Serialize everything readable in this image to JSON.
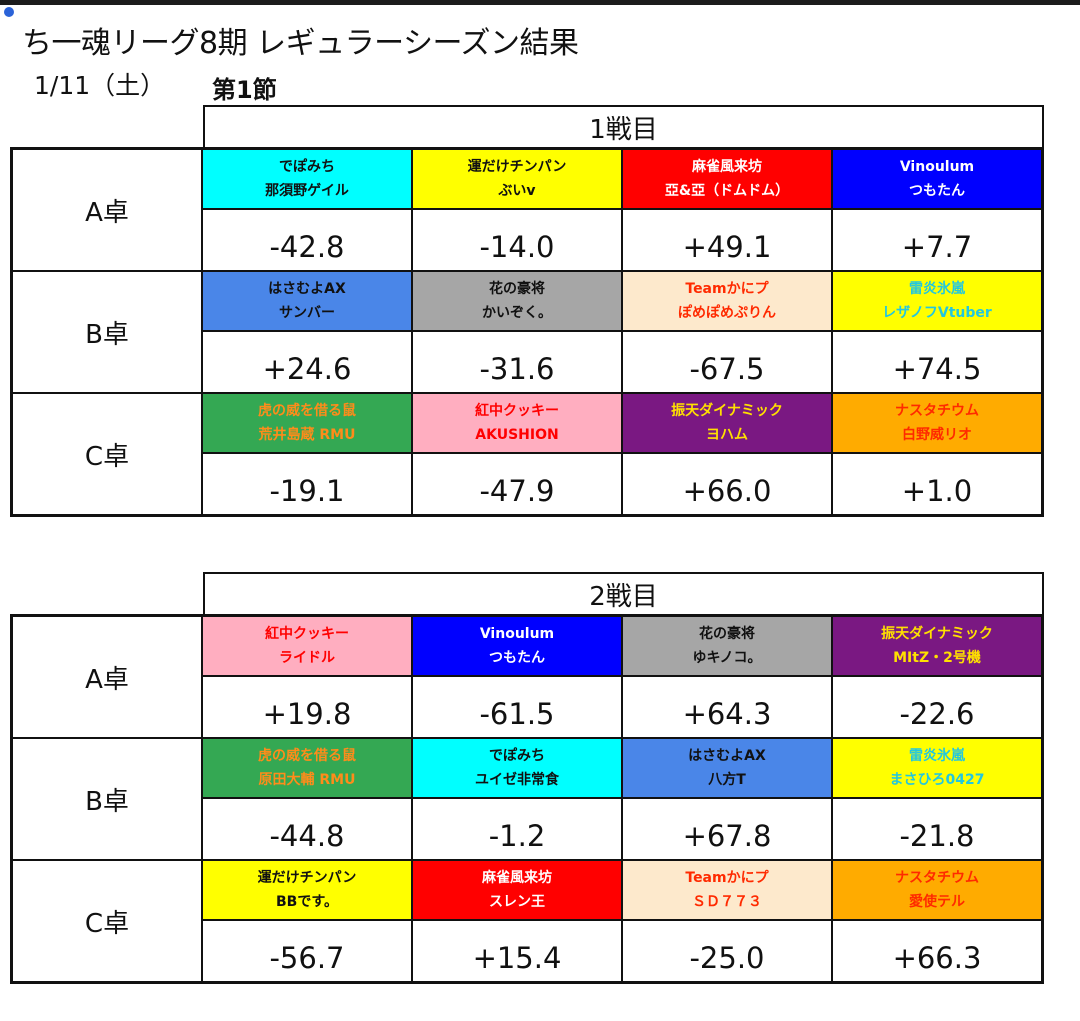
{
  "header": {
    "title": "ち一魂リーグ8期 レギュラーシーズン結果",
    "date": "1/11（土）",
    "round": "第1節"
  },
  "battles": [
    {
      "label": "1戦目",
      "tables": [
        {
          "label": "A卓",
          "players": [
            {
              "team": "でぽみち",
              "player": "那須野ゲイル",
              "score": "-42.8",
              "bg": "#00ffff",
              "fg": "#111111"
            },
            {
              "team": "運だけチンパン",
              "player": "ぶいv",
              "score": "-14.0",
              "bg": "#ffff00",
              "fg": "#111111"
            },
            {
              "team": "麻雀風来坊",
              "player": "亞&亞（ドムドム）",
              "score": "+49.1",
              "bg": "#ff0000",
              "fg": "#ffffff"
            },
            {
              "team": "Vinoulum",
              "player": "つもたん",
              "score": "+7.7",
              "bg": "#0000ff",
              "fg": "#ffffff"
            }
          ]
        },
        {
          "label": "B卓",
          "players": [
            {
              "team": "はさむよAX",
              "player": "サンバー",
              "score": "+24.6",
              "bg": "#4a86e8",
              "fg": "#111111"
            },
            {
              "team": "花の豪将",
              "player": "かいぞく。",
              "score": "-31.6",
              "bg": "#a6a6a6",
              "fg": "#111111"
            },
            {
              "team": "Teamかにプ",
              "player": "ぽめぽめぷりん",
              "score": "-67.5",
              "bg": "#fde9cc",
              "fg": "#ff2a00"
            },
            {
              "team": "雷炎氷嵐",
              "player": "レザノフVtuber",
              "score": "+74.5",
              "bg": "#ffff00",
              "fg": "#22c7e0"
            }
          ]
        },
        {
          "label": "C卓",
          "players": [
            {
              "team": "虎の威を借る鼠",
              "player": "荒井島蔵 RMU",
              "score": "-19.1",
              "bg": "#34a853",
              "fg": "#ff8c1a"
            },
            {
              "team": "紅中クッキー",
              "player": "AKUSHION",
              "score": "-47.9",
              "bg": "#ffaec0",
              "fg": "#ff0000"
            },
            {
              "team": "振天ダイナミック",
              "player": "ヨハム",
              "score": "+66.0",
              "bg": "#7a1882",
              "fg": "#ffe000"
            },
            {
              "team": "ナスタチウム",
              "player": "白野威リオ",
              "score": "+1.0",
              "bg": "#ffab00",
              "fg": "#ff2a00"
            }
          ]
        }
      ]
    },
    {
      "label": "2戦目",
      "tables": [
        {
          "label": "A卓",
          "players": [
            {
              "team": "紅中クッキー",
              "player": "ライドル",
              "score": "+19.8",
              "bg": "#ffaec0",
              "fg": "#ff0000"
            },
            {
              "team": "Vinoulum",
              "player": "つもたん",
              "score": "-61.5",
              "bg": "#0000ff",
              "fg": "#ffffff"
            },
            {
              "team": "花の豪将",
              "player": "ゆキノコ。",
              "score": "+64.3",
              "bg": "#a6a6a6",
              "fg": "#111111"
            },
            {
              "team": "振天ダイナミック",
              "player": "MItZ・2号機",
              "score": "-22.6",
              "bg": "#7a1882",
              "fg": "#ffe000"
            }
          ]
        },
        {
          "label": "B卓",
          "players": [
            {
              "team": "虎の威を借る鼠",
              "player": "原田大輔 RMU",
              "score": "-44.8",
              "bg": "#34a853",
              "fg": "#ff8c1a"
            },
            {
              "team": "でぽみち",
              "player": "ユイゼ非常食",
              "score": "-1.2",
              "bg": "#00ffff",
              "fg": "#111111"
            },
            {
              "team": "はさむよAX",
              "player": "八方T",
              "score": "+67.8",
              "bg": "#4a86e8",
              "fg": "#111111"
            },
            {
              "team": "雷炎氷嵐",
              "player": "まさひろ0427",
              "score": "-21.8",
              "bg": "#ffff00",
              "fg": "#22c7e0"
            }
          ]
        },
        {
          "label": "C卓",
          "players": [
            {
              "team": "運だけチンパン",
              "player": "BBです。",
              "score": "-56.7",
              "bg": "#ffff00",
              "fg": "#111111"
            },
            {
              "team": "麻雀風来坊",
              "player": "スレン王",
              "score": "+15.4",
              "bg": "#ff0000",
              "fg": "#ffffff"
            },
            {
              "team": "Teamかにプ",
              "player": "ＳＤ７７３",
              "score": "-25.0",
              "bg": "#fde9cc",
              "fg": "#ff2a00"
            },
            {
              "team": "ナスタチウム",
              "player": "愛使テル",
              "score": "+66.3",
              "bg": "#ffab00",
              "fg": "#ff2a00"
            }
          ]
        }
      ]
    }
  ]
}
